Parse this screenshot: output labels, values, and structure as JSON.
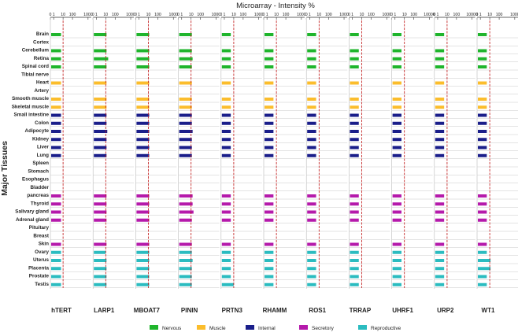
{
  "chart_data": {
    "type": "bar",
    "orientation": "horizontal-small-multiples",
    "title": "Microarray - Intensity %",
    "ylabel": "Major Tissues",
    "x_scale": "log-like",
    "tick_labels": [
      "0",
      "1",
      "10",
      "100",
      "1000"
    ],
    "tick_labels_wide": [
      "0",
      "1",
      "10",
      "100",
      "10000"
    ],
    "reference_line_value": 10,
    "categories": [
      "Brain",
      "Cortex",
      "Cerebellum",
      "Retina",
      "Spinal cord",
      "Tibial nerve",
      "Heart",
      "Artery",
      "Smooth muscle",
      "Skeletal muscle",
      "Small intestine",
      "Colon",
      "Adipocyte",
      "Kidney",
      "Liver",
      "Lung",
      "Spleen",
      "Stomach",
      "Esophagus",
      "Bladder",
      "pancreas",
      "Thyroid",
      "Salivary gland",
      "Adrenal gland",
      "Pituitary",
      "Breast",
      "Skin",
      "Ovary",
      "Uterus",
      "Placenta",
      "Prostate",
      "Testis"
    ],
    "tissue_groups": [
      "Nervous",
      "",
      "Nervous",
      "Nervous",
      "Nervous",
      "",
      "Muscle",
      "",
      "Muscle",
      "Muscle",
      "Internal",
      "Internal",
      "Internal",
      "Internal",
      "Internal",
      "Internal",
      "",
      "",
      "",
      "",
      "Secretory",
      "Secretory",
      "Secretory",
      "Secretory",
      "",
      "",
      "Secretory",
      "Reproductive",
      "Reproductive",
      "Reproductive",
      "Reproductive",
      "Reproductive"
    ],
    "group_colors": {
      "Nervous": "#1fb52c",
      "Muscle": "#fbbd2c",
      "Internal": "#1a1e8a",
      "Secretory": "#b51aab",
      "Reproductive": "#2bbcc0"
    },
    "legend": [
      "Nervous",
      "Muscle",
      "Internal",
      "Secretory",
      "Reproductive"
    ],
    "series": [
      {
        "name": "hTERT",
        "values": [
          5,
          0,
          5,
          5,
          5,
          0,
          5,
          0,
          5,
          5,
          5,
          5,
          5,
          5,
          5,
          5,
          0,
          0,
          0,
          0,
          5,
          5,
          5,
          5,
          0,
          0,
          5,
          5,
          5,
          5,
          5,
          5
        ]
      },
      {
        "name": "LARP1",
        "values": [
          10,
          0,
          10,
          15,
          10,
          0,
          10,
          0,
          10,
          10,
          10,
          10,
          12,
          10,
          10,
          10,
          0,
          0,
          0,
          0,
          10,
          10,
          10,
          10,
          0,
          0,
          10,
          8,
          10,
          10,
          10,
          10
        ]
      },
      {
        "name": "MBOAT7",
        "values": [
          10,
          0,
          10,
          10,
          10,
          0,
          10,
          0,
          10,
          10,
          10,
          10,
          10,
          10,
          10,
          10,
          0,
          0,
          0,
          0,
          10,
          10,
          10,
          10,
          0,
          0,
          10,
          10,
          10,
          10,
          10,
          10
        ]
      },
      {
        "name": "PININ",
        "values": [
          10,
          0,
          10,
          12,
          10,
          0,
          10,
          0,
          10,
          10,
          10,
          10,
          12,
          10,
          10,
          10,
          0,
          0,
          0,
          0,
          12,
          12,
          15,
          10,
          0,
          0,
          10,
          10,
          12,
          10,
          10,
          10
        ]
      },
      {
        "name": "PRTN3",
        "values": [
          4,
          0,
          4,
          4,
          4,
          0,
          4,
          0,
          4,
          4,
          4,
          4,
          4,
          4,
          4,
          4,
          0,
          0,
          0,
          0,
          4,
          4,
          4,
          4,
          0,
          0,
          4,
          4,
          4,
          4,
          4,
          8
        ]
      },
      {
        "name": "RHAMM",
        "values": [
          4,
          0,
          4,
          4,
          4,
          0,
          4,
          0,
          4,
          4,
          4,
          4,
          4,
          4,
          4,
          4,
          0,
          0,
          0,
          0,
          4,
          4,
          4,
          4,
          0,
          0,
          4,
          4,
          4,
          4,
          4,
          4
        ]
      },
      {
        "name": "ROS1",
        "values": [
          4,
          0,
          4,
          4,
          4,
          0,
          4,
          0,
          4,
          4,
          4,
          4,
          4,
          4,
          4,
          4,
          0,
          0,
          0,
          0,
          4,
          4,
          4,
          4,
          0,
          0,
          4,
          4,
          4,
          4,
          4,
          4
        ]
      },
      {
        "name": "TRRAP",
        "values": [
          4,
          0,
          4,
          4,
          4,
          0,
          4,
          0,
          4,
          4,
          4,
          4,
          4,
          4,
          4,
          4,
          0,
          0,
          0,
          0,
          4,
          4,
          4,
          4,
          0,
          0,
          4,
          4,
          4,
          4,
          4,
          4
        ]
      },
      {
        "name": "UHRF1",
        "values": [
          4,
          0,
          4,
          4,
          4,
          0,
          4,
          0,
          4,
          4,
          4,
          4,
          4,
          4,
          4,
          4,
          0,
          0,
          0,
          0,
          4,
          4,
          4,
          4,
          0,
          0,
          4,
          4,
          4,
          4,
          4,
          4
        ]
      },
      {
        "name": "URP2",
        "values": [
          4,
          0,
          4,
          4,
          4,
          0,
          4,
          0,
          4,
          4,
          4,
          4,
          4,
          4,
          4,
          4,
          0,
          0,
          0,
          0,
          4,
          4,
          4,
          4,
          0,
          0,
          4,
          4,
          4,
          4,
          4,
          4
        ]
      },
      {
        "name": "WT1",
        "values": [
          4,
          0,
          4,
          4,
          4,
          0,
          4,
          0,
          4,
          4,
          4,
          4,
          4,
          4,
          4,
          4,
          0,
          0,
          0,
          0,
          4,
          4,
          4,
          4,
          0,
          0,
          4,
          4,
          10,
          10,
          4,
          4
        ]
      }
    ]
  }
}
